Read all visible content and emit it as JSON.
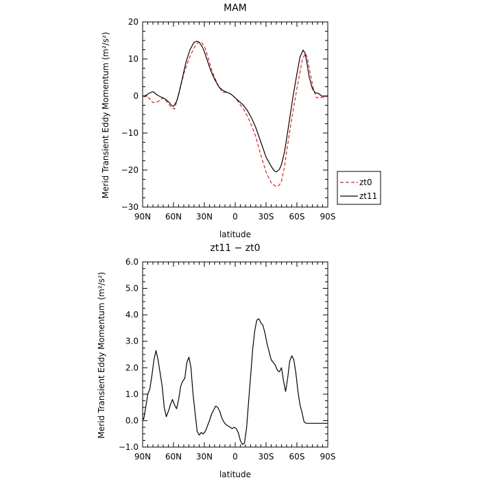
{
  "chart_data": [
    {
      "type": "line",
      "title": "MAM",
      "xlabel": "latitude",
      "ylabel": "Merid Transient Eddy Momentum (m²/s²)",
      "xlim": [
        90,
        -90
      ],
      "ylim": [
        -30,
        20
      ],
      "xticks": [
        90,
        60,
        30,
        0,
        -30,
        -60,
        -90
      ],
      "xtick_labels": [
        "90N",
        "60N",
        "30N",
        "0",
        "30S",
        "60S",
        "90S"
      ],
      "yticks": [
        -30,
        -20,
        -10,
        0,
        10,
        20
      ],
      "ytick_labels": [
        "−30",
        "−20",
        "−10",
        "0",
        "10",
        "20"
      ],
      "legend": "right",
      "series": [
        {
          "name": "zt0",
          "color": "#e41a1c",
          "dash": true,
          "x": [
            90,
            84,
            80,
            75,
            70,
            65,
            62,
            59,
            55,
            50,
            45,
            40,
            36,
            33,
            30,
            27,
            24,
            20,
            16,
            12,
            8,
            4,
            0,
            -4,
            -8,
            -12,
            -16,
            -20,
            -25,
            -30,
            -35,
            -40,
            -43,
            -45,
            -48,
            -50,
            -55,
            -60,
            -63,
            -65,
            -68,
            -70,
            -73,
            -76,
            -79,
            -82,
            -86,
            -90
          ],
          "y": [
            0,
            -0.5,
            -1.8,
            -1.5,
            -0.5,
            -2,
            -3.2,
            -3.5,
            0.3,
            6,
            10,
            13,
            14.5,
            14.5,
            13.5,
            11,
            8,
            5,
            2.5,
            1,
            1,
            0.5,
            -0.5,
            -2,
            -3.5,
            -5.5,
            -8,
            -11,
            -16,
            -20.5,
            -23.5,
            -24.5,
            -24,
            -23,
            -19,
            -15,
            -6,
            2,
            6.5,
            9.5,
            11.5,
            10.5,
            6,
            2,
            -0.5,
            -0.3,
            -0.5,
            0
          ]
        },
        {
          "name": "zt11",
          "color": "#000000",
          "dash": false,
          "x": [
            90,
            88,
            84,
            80,
            76,
            72,
            68,
            64,
            62,
            60,
            57,
            55,
            52,
            48,
            44,
            40,
            37,
            35,
            32,
            30,
            27,
            24,
            20,
            16,
            12,
            8,
            4,
            0,
            -4,
            -8,
            -12,
            -16,
            -20,
            -25,
            -30,
            -35,
            -38,
            -40,
            -43,
            -45,
            -48,
            -50,
            -53,
            -56,
            -60,
            -63,
            -66,
            -68,
            -70,
            -72,
            -75,
            -78,
            -80,
            -82,
            -84,
            -86,
            -88,
            -90
          ],
          "y": [
            0,
            0,
            0.7,
            1.2,
            0.3,
            -0.3,
            -0.8,
            -1.8,
            -2.5,
            -2.8,
            -1.5,
            0.5,
            4,
            9,
            12.5,
            14.5,
            14.8,
            14.5,
            13.3,
            12,
            9.5,
            7,
            4.5,
            2.5,
            1.5,
            1,
            0.5,
            -0.5,
            -1.5,
            -2.5,
            -4,
            -6,
            -8.5,
            -12.5,
            -16.5,
            -19,
            -20.2,
            -20.5,
            -19.8,
            -18.5,
            -15,
            -11.5,
            -6,
            -0.5,
            6,
            10.5,
            12.4,
            11.5,
            8.5,
            5,
            2,
            0.8,
            0.8,
            0.5,
            0,
            -0.1,
            0,
            0
          ]
        }
      ]
    },
    {
      "type": "line",
      "title": "zt11 − zt0",
      "xlabel": "latitude",
      "ylabel": "Merid Transient Eddy Momentum (m²/s²)",
      "xlim": [
        90,
        -90
      ],
      "ylim": [
        -1.0,
        6.0
      ],
      "xticks": [
        90,
        60,
        30,
        0,
        -30,
        -60,
        -90
      ],
      "xtick_labels": [
        "90N",
        "60N",
        "30N",
        "0",
        "30S",
        "60S",
        "90S"
      ],
      "yticks": [
        -1,
        0,
        1,
        2,
        3,
        4,
        5,
        6
      ],
      "ytick_labels": [
        "−1.0",
        "0.0",
        "1.0",
        "2.0",
        "3.0",
        "4.0",
        "5.0",
        "6.0"
      ],
      "legend": "none",
      "series": [
        {
          "color": "#000000",
          "dash": false,
          "x": [
            90,
            89,
            87,
            85,
            83,
            81,
            79,
            77,
            75,
            73,
            71,
            69,
            67,
            65,
            63,
            61,
            59,
            57,
            55,
            53,
            51,
            49,
            47,
            45,
            43,
            41,
            39,
            37,
            35,
            33,
            31,
            29,
            27,
            25,
            23,
            21,
            19,
            17,
            15,
            13,
            11,
            9,
            7,
            5,
            3,
            1,
            -1,
            -3,
            -5,
            -7,
            -9,
            -11,
            -13,
            -15,
            -17,
            -19,
            -21,
            -23,
            -25,
            -27,
            -29,
            -31,
            -33,
            -35,
            -37,
            -39,
            -41,
            -43,
            -45,
            -47,
            -49,
            -51,
            -53,
            -55,
            -57,
            -59,
            -61,
            -63,
            -65,
            -67,
            -69,
            -71,
            -73,
            -75,
            -77,
            -79,
            -81,
            -83,
            -85,
            -87,
            -89,
            -90
          ],
          "y": [
            0.1,
            0.05,
            0.5,
            1.0,
            1.2,
            1.7,
            2.3,
            2.65,
            2.3,
            1.8,
            1.3,
            0.5,
            0.15,
            0.35,
            0.6,
            0.8,
            0.6,
            0.45,
            0.8,
            1.3,
            1.5,
            1.6,
            2.2,
            2.4,
            2.0,
            1.0,
            0.3,
            -0.4,
            -0.55,
            -0.45,
            -0.5,
            -0.4,
            -0.2,
            0.0,
            0.25,
            0.4,
            0.55,
            0.5,
            0.35,
            0.1,
            -0.05,
            -0.15,
            -0.2,
            -0.25,
            -0.3,
            -0.25,
            -0.3,
            -0.45,
            -0.75,
            -0.9,
            -0.85,
            -0.3,
            0.7,
            1.7,
            2.7,
            3.4,
            3.8,
            3.85,
            3.7,
            3.6,
            3.3,
            2.9,
            2.6,
            2.3,
            2.2,
            2.1,
            1.9,
            1.85,
            2.0,
            1.5,
            1.1,
            1.6,
            2.25,
            2.45,
            2.3,
            1.8,
            1.1,
            0.6,
            0.3,
            -0.05,
            -0.1,
            -0.1,
            -0.1,
            -0.1,
            -0.1,
            -0.1,
            -0.1,
            -0.1,
            -0.1,
            -0.1,
            -0.1,
            -0.1
          ]
        }
      ]
    }
  ],
  "legend_labels": [
    "zt0",
    "zt11"
  ]
}
